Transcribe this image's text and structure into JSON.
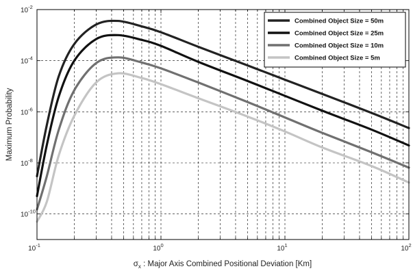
{
  "chart_data": {
    "type": "line",
    "xscale": "log",
    "yscale": "log",
    "xlim": [
      0.1,
      100
    ],
    "ylim": [
      1e-11,
      0.01
    ],
    "grid": true,
    "legend_position": "top-right",
    "xlabel_symbol": "σ",
    "xlabel_subscript": "x",
    "xlabel_rest": " : Major Axis Combined Positional Deviation [Km]",
    "ylabel": "Maximum Probability",
    "x_ticks": [
      {
        "value": 0.1,
        "base": "10",
        "exp": "-1"
      },
      {
        "value": 1,
        "base": "10",
        "exp": "0"
      },
      {
        "value": 10,
        "base": "10",
        "exp": "1"
      },
      {
        "value": 100,
        "base": "10",
        "exp": "2"
      }
    ],
    "y_ticks": [
      {
        "value": 1e-10,
        "base": "10",
        "exp": "-10"
      },
      {
        "value": 1e-08,
        "base": "10",
        "exp": "-8"
      },
      {
        "value": 1e-06,
        "base": "10",
        "exp": "-6"
      },
      {
        "value": 0.0001,
        "base": "10",
        "exp": "-4"
      },
      {
        "value": 0.01,
        "base": "10",
        "exp": "-2"
      }
    ],
    "series": [
      {
        "name": "Combined Object Size = 50m",
        "color": "#222222",
        "x": [
          0.1,
          0.12,
          0.15,
          0.2,
          0.3,
          0.45,
          0.7,
          1,
          2,
          5,
          10,
          20,
          50,
          100
        ],
        "y": [
          3e-09,
          3e-07,
          2.5e-05,
          0.00045,
          0.0026,
          0.0036,
          0.0022,
          0.0013,
          0.00035,
          6.5e-05,
          1.8e-05,
          5e-06,
          9e-07,
          2.3e-07
        ]
      },
      {
        "name": "Combined Object Size = 25m",
        "color": "#111111",
        "x": [
          0.1,
          0.12,
          0.15,
          0.2,
          0.3,
          0.45,
          0.7,
          1,
          2,
          5,
          10,
          20,
          50,
          100
        ],
        "y": [
          5e-10,
          5e-08,
          4e-06,
          0.0001,
          0.0007,
          0.001,
          0.00065,
          0.00038,
          9e-05,
          1.6e-05,
          4.2e-06,
          1.1e-06,
          2e-07,
          4.8e-08
        ]
      },
      {
        "name": "Combined Object Size = 10m",
        "color": "#707070",
        "x": [
          0.1,
          0.12,
          0.15,
          0.2,
          0.3,
          0.45,
          0.7,
          1,
          2,
          5,
          10,
          20,
          50,
          100
        ],
        "y": [
          1.5e-10,
          3e-09,
          2e-07,
          7e-06,
          8e-05,
          0.000135,
          8.5e-05,
          5e-05,
          1.4e-05,
          2.4e-06,
          6e-07,
          1.5e-07,
          2.6e-08,
          6.5e-09
        ]
      },
      {
        "name": "Combined Object Size = 5m",
        "color": "#c4c4c4",
        "x": [
          0.1,
          0.12,
          0.15,
          0.2,
          0.3,
          0.45,
          0.7,
          1,
          2,
          5,
          10,
          20,
          50,
          100
        ],
        "y": [
          5e-11,
          3e-10,
          2e-08,
          7e-07,
          1.4e-05,
          3.2e-05,
          2.1e-05,
          1.2e-05,
          3.4e-06,
          6.5e-07,
          1.7e-07,
          4e-08,
          7.5e-09,
          1.7e-09
        ]
      }
    ]
  }
}
